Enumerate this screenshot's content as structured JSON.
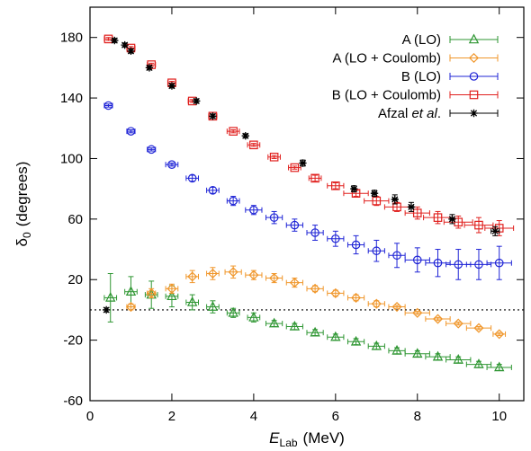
{
  "chart_data": {
    "type": "scatter",
    "title": "",
    "xlabel": {
      "main": "E",
      "sub": "Lab",
      "unit": "(MeV)"
    },
    "ylabel": {
      "main": "δ",
      "sub": "0",
      "unit": "(degrees)"
    },
    "xlim": [
      0,
      10.6
    ],
    "ylim": [
      -60,
      200
    ],
    "xticks": [
      0,
      2,
      4,
      6,
      8,
      10
    ],
    "yticks": [
      -60,
      -20,
      20,
      60,
      100,
      140,
      180
    ],
    "reference_line": {
      "y": 0,
      "style": "dotted"
    },
    "legend_position": "top-right",
    "series": [
      {
        "name": "A (LO)",
        "color": "#2e9632",
        "marker": "triangle",
        "x": [
          0.5,
          1.0,
          1.5,
          2.0,
          2.5,
          3.0,
          3.5,
          4.0,
          4.5,
          5.0,
          5.5,
          6.0,
          6.5,
          7.0,
          7.5,
          8.0,
          8.5,
          9.0,
          9.5,
          10.0
        ],
        "y": [
          8,
          12,
          10,
          9,
          5,
          2,
          -2,
          -5,
          -9,
          -11,
          -15,
          -18,
          -21,
          -24,
          -27,
          -29,
          -31,
          -33,
          -36,
          -38
        ],
        "yerr": [
          16,
          10,
          9,
          7,
          5,
          4,
          3,
          3,
          2,
          2,
          2,
          2,
          2,
          2,
          2,
          2,
          2,
          2,
          2,
          2
        ],
        "xerr": [
          0.15,
          0.15,
          0.15,
          0.15,
          0.15,
          0.15,
          0.15,
          0.15,
          0.2,
          0.2,
          0.2,
          0.2,
          0.2,
          0.2,
          0.2,
          0.3,
          0.3,
          0.3,
          0.3,
          0.3
        ]
      },
      {
        "name": "A (LO + Coulomb)",
        "color": "#f0962a",
        "marker": "diamond",
        "x": [
          1.0,
          1.5,
          2.0,
          2.5,
          3.0,
          3.5,
          4.0,
          4.5,
          5.0,
          5.5,
          6.0,
          6.5,
          7.0,
          7.5,
          8.0,
          8.5,
          9.0,
          9.5,
          10.0
        ],
        "y": [
          2,
          11,
          14,
          22,
          24,
          25,
          23,
          21,
          18,
          14,
          11,
          8,
          4,
          2,
          -2,
          -6,
          -9,
          -12,
          -16
        ],
        "yerr": [
          2,
          3,
          3,
          4,
          4,
          4,
          3,
          3,
          3,
          2,
          2,
          2,
          2,
          1,
          1,
          1,
          1,
          1,
          1
        ],
        "xerr": [
          0.1,
          0.1,
          0.15,
          0.15,
          0.15,
          0.2,
          0.2,
          0.2,
          0.2,
          0.2,
          0.2,
          0.2,
          0.2,
          0.2,
          0.3,
          0.3,
          0.3,
          0.3,
          0.15
        ]
      },
      {
        "name": "B (LO)",
        "color": "#1f24d6",
        "marker": "circle",
        "x": [
          0.45,
          1.0,
          1.5,
          2.0,
          2.5,
          3.0,
          3.5,
          4.0,
          4.5,
          5.0,
          5.5,
          6.0,
          6.5,
          7.0,
          7.5,
          8.0,
          8.5,
          9.0,
          9.5,
          10.0
        ],
        "y": [
          135,
          118,
          106,
          96,
          87,
          79,
          72,
          66,
          61,
          56,
          51,
          47,
          43,
          39,
          36,
          33,
          31,
          30,
          30,
          31
        ],
        "yerr": [
          1,
          1,
          1,
          1,
          2,
          2,
          3,
          3,
          4,
          4,
          5,
          5,
          6,
          7,
          8,
          8,
          9,
          10,
          10,
          11
        ],
        "xerr": [
          0.1,
          0.1,
          0.1,
          0.15,
          0.15,
          0.15,
          0.15,
          0.2,
          0.2,
          0.2,
          0.2,
          0.2,
          0.2,
          0.2,
          0.2,
          0.3,
          0.3,
          0.3,
          0.3,
          0.3
        ]
      },
      {
        "name": "B (LO + Coulomb)",
        "color": "#e0201e",
        "marker": "square",
        "x": [
          0.45,
          1.0,
          1.5,
          2.0,
          2.5,
          3.0,
          3.5,
          4.0,
          4.5,
          5.0,
          5.5,
          6.0,
          6.5,
          7.0,
          7.5,
          8.0,
          8.5,
          9.0,
          9.5,
          10.0
        ],
        "y": [
          179,
          173,
          162,
          150,
          138,
          128,
          118,
          109,
          101,
          94,
          87,
          82,
          77,
          72,
          68,
          64,
          61,
          58,
          56,
          54
        ],
        "yerr": [
          1,
          1,
          1,
          1,
          1,
          1,
          1,
          1,
          1,
          1,
          2,
          2,
          2,
          3,
          3,
          4,
          4,
          4,
          5,
          5
        ],
        "xerr": [
          0.1,
          0.1,
          0.1,
          0.1,
          0.1,
          0.1,
          0.15,
          0.15,
          0.15,
          0.15,
          0.15,
          0.2,
          0.3,
          0.3,
          0.3,
          0.3,
          0.35,
          0.35,
          0.35,
          0.35
        ]
      },
      {
        "name": "Afzal et al.",
        "name_parts": [
          "Afzal ",
          "et al",
          "."
        ],
        "color": "#000000",
        "marker": "star",
        "x": [
          0.4,
          0.6,
          0.85,
          1.0,
          1.45,
          2.0,
          2.6,
          3.0,
          3.8,
          5.2,
          6.45,
          6.95,
          7.45,
          7.85,
          8.85,
          9.9
        ],
        "y": [
          0,
          178,
          175,
          171,
          160,
          148,
          138,
          128,
          115,
          97,
          80,
          77,
          73,
          68,
          60,
          52
        ],
        "yerr": [
          0,
          1,
          1,
          1,
          1,
          1,
          1,
          1,
          1,
          2,
          2,
          2,
          3,
          3,
          3,
          3
        ],
        "xerr": [
          0.03,
          0.03,
          0.03,
          0.03,
          0.03,
          0.03,
          0.03,
          0.03,
          0.03,
          0.05,
          0.05,
          0.05,
          0.05,
          0.05,
          0.05,
          0.1
        ]
      }
    ]
  }
}
